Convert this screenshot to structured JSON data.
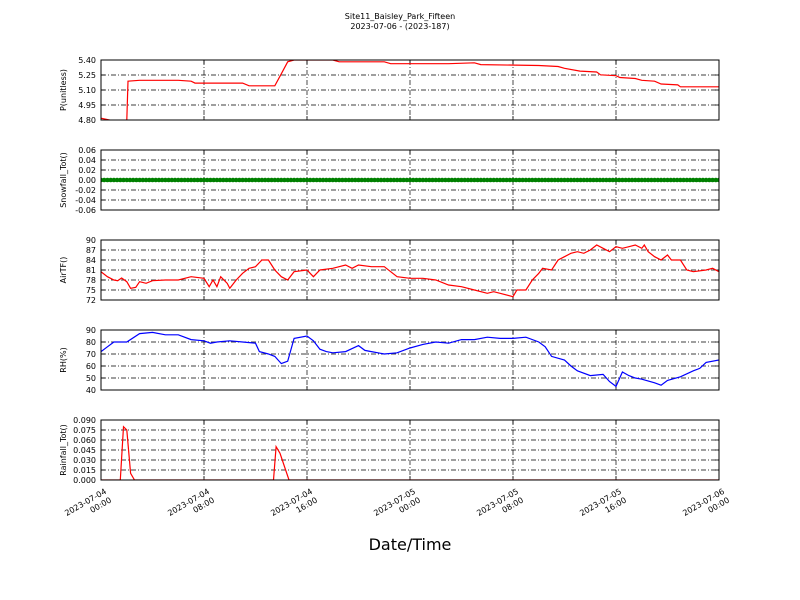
{
  "title": "Site11_Baisley_Park_Fifteen",
  "subtitle": "2023-07-06 - (2023-187)",
  "xlabel": "Date/Time",
  "x_ticks": [
    {
      "t": 0,
      "line1": "2023-07-04",
      "line2": "00:00"
    },
    {
      "t": 8,
      "line1": "2023-07-04",
      "line2": "08:00"
    },
    {
      "t": 16,
      "line1": "2023-07-04",
      "line2": "16:00"
    },
    {
      "t": 24,
      "line1": "2023-07-05",
      "line2": "00:00"
    },
    {
      "t": 32,
      "line1": "2023-07-05",
      "line2": "08:00"
    },
    {
      "t": 40,
      "line1": "2023-07-05",
      "line2": "16:00"
    },
    {
      "t": 48,
      "line1": "2023-07-06",
      "line2": "00:00"
    }
  ],
  "chart_data": [
    {
      "type": "line",
      "ylabel": "P(unitless)",
      "ylim": [
        4.8,
        5.45
      ],
      "yticks": [
        "4.80",
        "4.95",
        "5.10",
        "5.25",
        "5.40"
      ],
      "color": "#ff0000",
      "grid": true,
      "x_start": "2023-07-04 00:00",
      "x_end": "2023-07-06 00:00",
      "points": [
        [
          0,
          4.82
        ],
        [
          1,
          4.79
        ],
        [
          2,
          4.8
        ],
        [
          2.1,
          5.22
        ],
        [
          3,
          5.23
        ],
        [
          4,
          5.23
        ],
        [
          6,
          5.23
        ],
        [
          7,
          5.22
        ],
        [
          7.3,
          5.2
        ],
        [
          11,
          5.2
        ],
        [
          11.5,
          5.17
        ],
        [
          13.5,
          5.17
        ],
        [
          14,
          5.3
        ],
        [
          14.5,
          5.43
        ],
        [
          15,
          5.45
        ],
        [
          18,
          5.45
        ],
        [
          18.5,
          5.43
        ],
        [
          22,
          5.43
        ],
        [
          22.5,
          5.41
        ],
        [
          27,
          5.41
        ],
        [
          29,
          5.42
        ],
        [
          29.5,
          5.4
        ],
        [
          34,
          5.39
        ],
        [
          35.5,
          5.38
        ],
        [
          36,
          5.36
        ],
        [
          37.2,
          5.33
        ],
        [
          38.5,
          5.32
        ],
        [
          38.8,
          5.29
        ],
        [
          40,
          5.28
        ],
        [
          40.3,
          5.26
        ],
        [
          41.5,
          5.25
        ],
        [
          42,
          5.23
        ],
        [
          43,
          5.22
        ],
        [
          43.5,
          5.19
        ],
        [
          44.8,
          5.18
        ],
        [
          45,
          5.16
        ],
        [
          48,
          5.16
        ]
      ]
    },
    {
      "type": "scatter",
      "ylabel": "Snowfall_Tot()",
      "ylim": [
        -0.06,
        0.06
      ],
      "yticks": [
        "-0.06",
        "-0.04",
        "-0.02",
        "0.00",
        "0.02",
        "0.04",
        "0.06"
      ],
      "color": "#008000",
      "grid": true,
      "value": 0.0,
      "interval_minutes": 15,
      "x_start": "2023-07-04 00:00",
      "x_end": "2023-07-06 00:00"
    },
    {
      "type": "line",
      "ylabel": "AirTF()",
      "ylim": [
        72,
        90
      ],
      "yticks": [
        "72",
        "75",
        "78",
        "81",
        "84",
        "87",
        "90"
      ],
      "color": "#ff0000",
      "grid": true,
      "x_start": "2023-07-04 00:00",
      "x_end": "2023-07-06 00:00",
      "points": [
        [
          0,
          80.5
        ],
        [
          0.5,
          79
        ],
        [
          1,
          78
        ],
        [
          1.3,
          77.8
        ],
        [
          1.6,
          78.6
        ],
        [
          2,
          77.5
        ],
        [
          2.3,
          75.5
        ],
        [
          2.7,
          75.8
        ],
        [
          3,
          77.5
        ],
        [
          3.5,
          77
        ],
        [
          4,
          77.8
        ],
        [
          5,
          78
        ],
        [
          6,
          78
        ],
        [
          7,
          79
        ],
        [
          8,
          78.5
        ],
        [
          8.4,
          76
        ],
        [
          8.7,
          78
        ],
        [
          9,
          76
        ],
        [
          9.3,
          79
        ],
        [
          9.8,
          77
        ],
        [
          10,
          75.5
        ],
        [
          10.5,
          78
        ],
        [
          11,
          80
        ],
        [
          11.5,
          81.5
        ],
        [
          12,
          82
        ],
        [
          12.5,
          84
        ],
        [
          13,
          84
        ],
        [
          13.5,
          81
        ],
        [
          14,
          79
        ],
        [
          14.5,
          78
        ],
        [
          15,
          80.5
        ],
        [
          16,
          81
        ],
        [
          16.5,
          79
        ],
        [
          17,
          81
        ],
        [
          18,
          81.5
        ],
        [
          19,
          82.5
        ],
        [
          19.5,
          81.5
        ],
        [
          20,
          82.5
        ],
        [
          21,
          82
        ],
        [
          21.5,
          82
        ],
        [
          22,
          82
        ],
        [
          23,
          79
        ],
        [
          24,
          78.5
        ],
        [
          25,
          78.5
        ],
        [
          26,
          78
        ],
        [
          27,
          76.5
        ],
        [
          28,
          76
        ],
        [
          29,
          75
        ],
        [
          30,
          74
        ],
        [
          30.5,
          74.5
        ],
        [
          31,
          74
        ],
        [
          32,
          73
        ],
        [
          32.3,
          75
        ],
        [
          33,
          75
        ],
        [
          33.5,
          78
        ],
        [
          34,
          80
        ],
        [
          34.3,
          81.5
        ],
        [
          35,
          81
        ],
        [
          35.5,
          84
        ],
        [
          36,
          85
        ],
        [
          36.5,
          86
        ],
        [
          37,
          86.5
        ],
        [
          37.5,
          86
        ],
        [
          38,
          87
        ],
        [
          38.5,
          88.5
        ],
        [
          39,
          87.5
        ],
        [
          39.5,
          86.5
        ],
        [
          40,
          88
        ],
        [
          40.5,
          87.5
        ],
        [
          41,
          88
        ],
        [
          41.5,
          88.5
        ],
        [
          42,
          87.5
        ],
        [
          42.2,
          88.5
        ],
        [
          42.5,
          86.5
        ],
        [
          43,
          85
        ],
        [
          43.5,
          84
        ],
        [
          44,
          85.5
        ],
        [
          44.3,
          84
        ],
        [
          45,
          84
        ],
        [
          45.5,
          81
        ],
        [
          46,
          80.5
        ],
        [
          47,
          81
        ],
        [
          47.5,
          81.5
        ],
        [
          48,
          80.5
        ]
      ]
    },
    {
      "type": "line",
      "ylabel": "RH(%)",
      "ylim": [
        40,
        90
      ],
      "yticks": [
        "40",
        "50",
        "60",
        "70",
        "80",
        "90"
      ],
      "color": "#0000ff",
      "grid": true,
      "x_start": "2023-07-04 00:00",
      "x_end": "2023-07-06 00:00",
      "points": [
        [
          0,
          72
        ],
        [
          0.5,
          76
        ],
        [
          1,
          80
        ],
        [
          2,
          80
        ],
        [
          3,
          87
        ],
        [
          4,
          88
        ],
        [
          5,
          86
        ],
        [
          6,
          86
        ],
        [
          7,
          82
        ],
        [
          8,
          81
        ],
        [
          8.5,
          79
        ],
        [
          9,
          80
        ],
        [
          10,
          81
        ],
        [
          11,
          80
        ],
        [
          12,
          79
        ],
        [
          12.3,
          72
        ],
        [
          13,
          70
        ],
        [
          13.5,
          68
        ],
        [
          14,
          62
        ],
        [
          14.5,
          64
        ],
        [
          15,
          83
        ],
        [
          16,
          85
        ],
        [
          16.5,
          81
        ],
        [
          17,
          74
        ],
        [
          17.5,
          72
        ],
        [
          18,
          71
        ],
        [
          19,
          72
        ],
        [
          20,
          77
        ],
        [
          20.5,
          73
        ],
        [
          21,
          72
        ],
        [
          22,
          70
        ],
        [
          23,
          71
        ],
        [
          24,
          75
        ],
        [
          25,
          78
        ],
        [
          26,
          80
        ],
        [
          27,
          79
        ],
        [
          28,
          82
        ],
        [
          29,
          82
        ],
        [
          30,
          84
        ],
        [
          31,
          83
        ],
        [
          32,
          83
        ],
        [
          33,
          84
        ],
        [
          34,
          80
        ],
        [
          34.5,
          76
        ],
        [
          35,
          68
        ],
        [
          36,
          65
        ],
        [
          36.5,
          60
        ],
        [
          37,
          56
        ],
        [
          38,
          52
        ],
        [
          39,
          53
        ],
        [
          39.5,
          47
        ],
        [
          40,
          43
        ],
        [
          40.5,
          55
        ],
        [
          41,
          52
        ],
        [
          41.5,
          50
        ],
        [
          42,
          49
        ],
        [
          43,
          46
        ],
        [
          43.5,
          44
        ],
        [
          44,
          48
        ],
        [
          45,
          51
        ],
        [
          46,
          56
        ],
        [
          46.5,
          58
        ],
        [
          47,
          63
        ],
        [
          48,
          65
        ],
        [
          49,
          66
        ],
        [
          50,
          67
        ],
        [
          51,
          68
        ],
        [
          52,
          70
        ]
      ]
    },
    {
      "type": "line",
      "ylabel": "Rainfall_Tot()",
      "ylim": [
        0,
        0.09
      ],
      "yticks": [
        "0.000",
        "0.015",
        "0.030",
        "0.045",
        "0.060",
        "0.075",
        "0.090"
      ],
      "color": "#ff0000",
      "grid": true,
      "x_start": "2023-07-04 00:00",
      "x_end": "2023-07-06 00:00",
      "points": [
        [
          0,
          0
        ],
        [
          1.5,
          0
        ],
        [
          1.75,
          0.08
        ],
        [
          2,
          0.075
        ],
        [
          2.3,
          0.01
        ],
        [
          2.6,
          0
        ],
        [
          13.4,
          0
        ],
        [
          13.6,
          0.05
        ],
        [
          13.9,
          0.04
        ],
        [
          14.6,
          0
        ],
        [
          48,
          0
        ]
      ]
    }
  ]
}
